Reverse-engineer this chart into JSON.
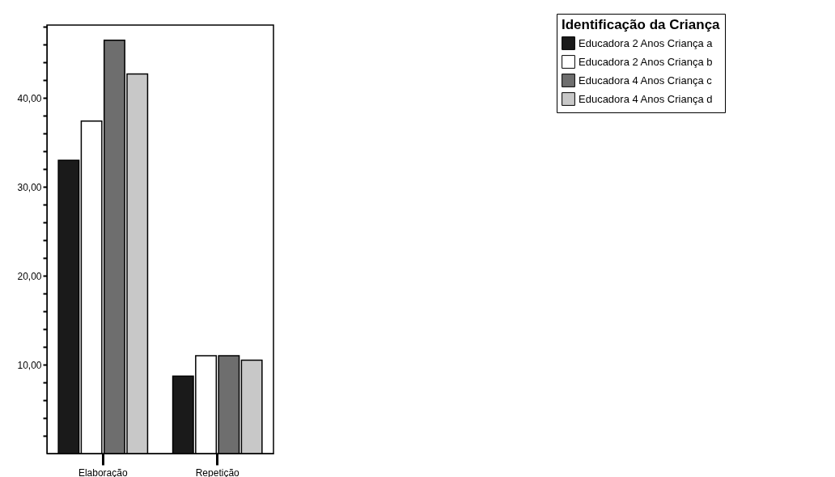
{
  "chart_data": {
    "type": "bar",
    "categories": [
      "Elaboração",
      "Repetição"
    ],
    "legend_title": "Identificação da Criança",
    "legend": "top right",
    "grid": false,
    "series": [
      {
        "name": "Educadora 2 Anos Criança a",
        "color": "#1a1a1a",
        "values": [
          33.0,
          8.7
        ]
      },
      {
        "name": "Educadora 2 Anos Criança b",
        "color": "#ffffff",
        "values": [
          37.4,
          11.0
        ]
      },
      {
        "name": "Educadora 4 Anos Criança c",
        "color": "#6e6e6e",
        "values": [
          46.5,
          11.0
        ]
      },
      {
        "name": "Educadora 4 Anos Criança d",
        "color": "#c8c8c8",
        "values": [
          42.7,
          10.5
        ]
      }
    ],
    "ylim": [
      0,
      48.2
    ],
    "yticks": [
      {
        "value": 2,
        "label": null
      },
      {
        "value": 4,
        "label": null
      },
      {
        "value": 6,
        "label": null
      },
      {
        "value": 8,
        "label": null
      },
      {
        "value": 10,
        "label": "10,00"
      },
      {
        "value": 12,
        "label": null
      },
      {
        "value": 14,
        "label": null
      },
      {
        "value": 16,
        "label": null
      },
      {
        "value": 18,
        "label": null
      },
      {
        "value": 20,
        "label": "20,00"
      },
      {
        "value": 22,
        "label": null
      },
      {
        "value": 24,
        "label": null
      },
      {
        "value": 26,
        "label": null
      },
      {
        "value": 28,
        "label": null
      },
      {
        "value": 30,
        "label": "30,00"
      },
      {
        "value": 32,
        "label": null
      },
      {
        "value": 34,
        "label": null
      },
      {
        "value": 36,
        "label": null
      },
      {
        "value": 38,
        "label": null
      },
      {
        "value": 40,
        "label": "40,00"
      },
      {
        "value": 42,
        "label": null
      },
      {
        "value": 44,
        "label": null
      },
      {
        "value": 46,
        "label": null
      },
      {
        "value": 48,
        "label": null
      }
    ]
  }
}
